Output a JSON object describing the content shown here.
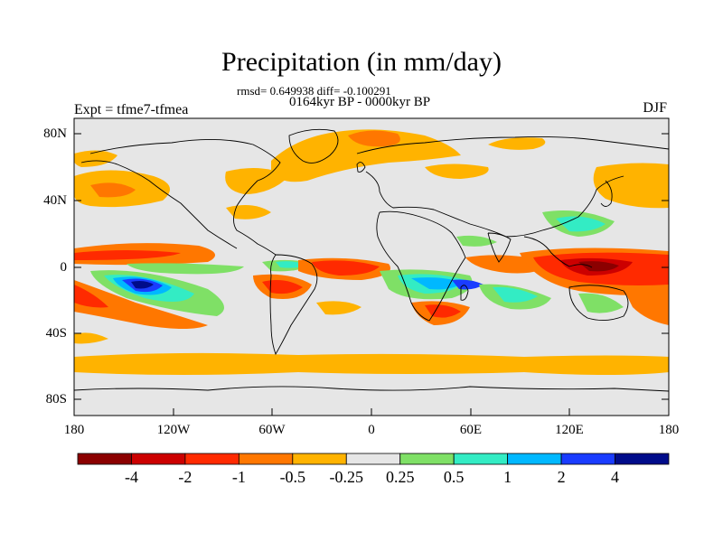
{
  "title": "Precipitation (in mm/day)",
  "stats_line": "rmsd= 0.649938 diff= -0.100291",
  "period_line": "0164kyr BP - 0000kyr BP",
  "experiment_label": "Expt = tfme7-tfmea",
  "season_label": "DJF",
  "lat_ticks": [
    "80N",
    "40N",
    "0",
    "40S",
    "80S"
  ],
  "lon_ticks": [
    "180",
    "120W",
    "60W",
    "0",
    "60E",
    "120E",
    "180"
  ],
  "colorbar": {
    "labels": [
      "-4",
      "-2",
      "-1",
      "-0.5",
      "-0.25",
      "0.25",
      "0.5",
      "1",
      "2",
      "4"
    ],
    "colors": [
      "#8b0000",
      "#cc0000",
      "#ff2a00",
      "#ff7700",
      "#ffb300",
      "#e6e6e6",
      "#7fe066",
      "#33ecc4",
      "#00b8ff",
      "#1a3cff",
      "#000c8a"
    ]
  },
  "map_colors": {
    "background": "#e6e6e6",
    "coast": "#000000"
  }
}
